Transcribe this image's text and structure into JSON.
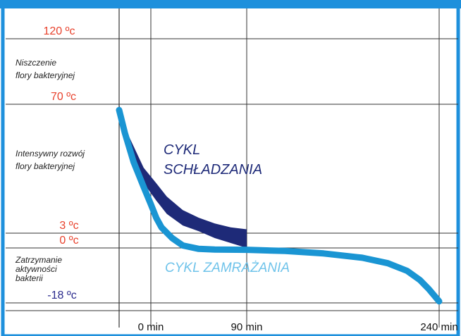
{
  "colors": {
    "frame": "#1e90dc",
    "grid": "#333333",
    "temp_red": "#e8412c",
    "temp_blue": "#2a2a8c",
    "zone_text": "#222222",
    "axis_text": "#111111",
    "cooling": "#1e2a78",
    "freezing": "#1a95d3"
  },
  "chart_data": {
    "type": "line",
    "title": "",
    "xlabel": "",
    "ylabel": "",
    "x_ticks": [
      {
        "value": 0,
        "label": "0 min"
      },
      {
        "value": 90,
        "label": "90 min"
      },
      {
        "value": 240,
        "label": "240 min"
      }
    ],
    "y_ticks": [
      {
        "value": 120,
        "label": "120 ºc",
        "color": "red"
      },
      {
        "value": 70,
        "label": "70 ºc",
        "color": "red"
      },
      {
        "value": 3,
        "label": "3 ºc",
        "color": "red"
      },
      {
        "value": 0,
        "label": "0 ºc",
        "color": "red"
      },
      {
        "value": -18,
        "label": "-18 ºc",
        "color": "blue"
      }
    ],
    "zones": [
      {
        "name": "heat",
        "lines": [
          "Niszczenie",
          "flory bakteryjnej"
        ]
      },
      {
        "name": "growth",
        "lines": [
          "Intensywny rozwój",
          "flory bakteryjnej"
        ]
      },
      {
        "name": "stop",
        "lines": [
          "Zatrzymanie",
          "aktywności",
          "bakterii"
        ]
      }
    ],
    "series": [
      {
        "name": "CYKL SCHŁADZANIA",
        "label_lines": [
          "CYKL",
          "SCHŁADZANIA"
        ],
        "style": "band",
        "x": [
          -22,
          -15,
          -5,
          5,
          15,
          30,
          45,
          60,
          75,
          90
        ],
        "upper": [
          70,
          53,
          37,
          29,
          22,
          15,
          11,
          8,
          6,
          5
        ],
        "lower": [
          70,
          45,
          29,
          20,
          13,
          7,
          4,
          2,
          1,
          0
        ]
      },
      {
        "name": "CYKL ZAMRAŻANIA",
        "label_lines": [
          "CYKL ZAMRAŻANIA"
        ],
        "style": "thick-line",
        "x": [
          -22,
          -18,
          -12,
          -5,
          0,
          5,
          10,
          20,
          30,
          45,
          60,
          90,
          120,
          150,
          180,
          200,
          215,
          225,
          232,
          240
        ],
        "y": [
          67,
          55,
          40,
          27,
          18,
          11,
          6,
          2,
          0.5,
          -0.3,
          -0.5,
          -0.6,
          -1,
          -1.8,
          -3.2,
          -5,
          -7.5,
          -10.5,
          -13.5,
          -17.5
        ]
      }
    ]
  }
}
